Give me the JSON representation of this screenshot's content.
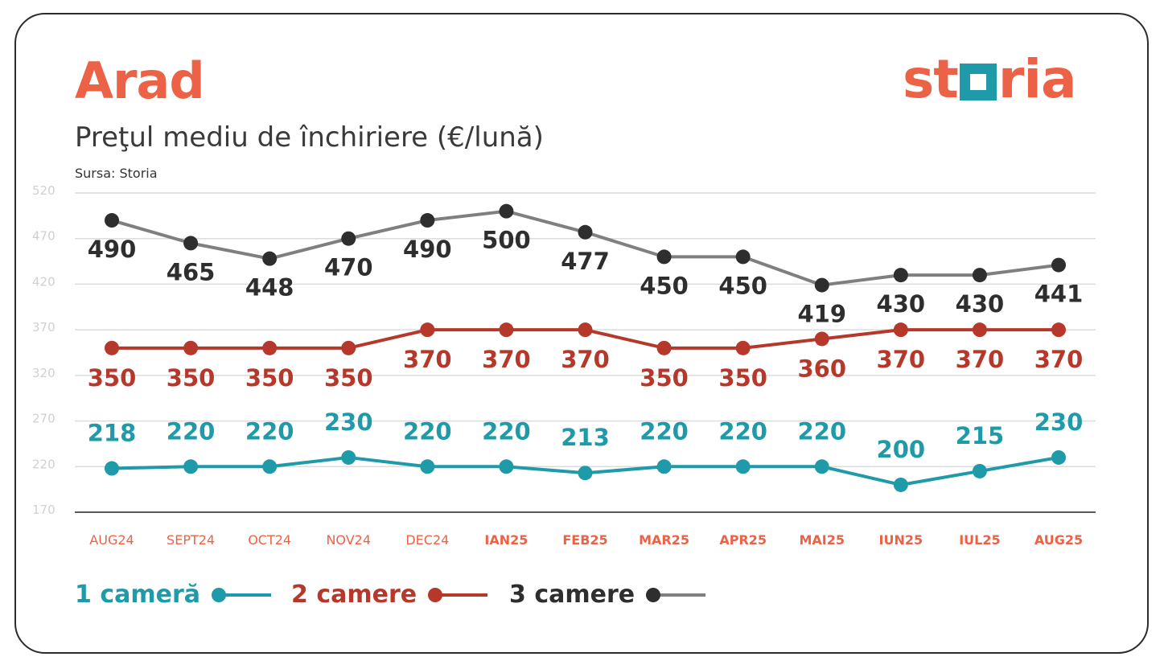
{
  "header": {
    "city": "Arad",
    "subtitle": "Preţul mediu de închiriere (€/lună)",
    "source": "Sursa: Storia",
    "logo_left": "st",
    "logo_right": "ria"
  },
  "colors": {
    "accent": "#ec6247",
    "one_room": "#1e9aa8",
    "two_rooms": "#b5382b",
    "three_rooms_line": "#7f7f7f",
    "three_rooms_dot": "#2e2e2e",
    "grid": "#dcdcdc",
    "tick": "#d0d0d0"
  },
  "legend": {
    "one_room": "1 cameră",
    "two_rooms": "2 camere",
    "three_rooms": "3 camere"
  },
  "chart_data": {
    "type": "line",
    "title": "Preţul mediu de închiriere (€/lună)",
    "xlabel": "",
    "ylabel": "",
    "categories": [
      "AUG24",
      "SEPT24",
      "OCT24",
      "NOV24",
      "DEC24",
      "IAN25",
      "FEB25",
      "MAR25",
      "APR25",
      "MAI25",
      "IUN25",
      "IUL25",
      "AUG25"
    ],
    "bold_categories": [
      "IAN25",
      "FEB25",
      "MAR25",
      "APR25",
      "MAI25",
      "IUN25",
      "IUL25",
      "AUG25"
    ],
    "ylim": [
      170,
      520
    ],
    "yticks": [
      520,
      470,
      420,
      370,
      320,
      270,
      220,
      170
    ],
    "grid": true,
    "legend_position": "bottom-left",
    "series": [
      {
        "name": "1 cameră",
        "values": [
          218,
          220,
          220,
          230,
          220,
          220,
          213,
          220,
          220,
          220,
          200,
          215,
          230
        ]
      },
      {
        "name": "2 camere",
        "values": [
          350,
          350,
          350,
          350,
          370,
          370,
          370,
          350,
          350,
          360,
          370,
          370,
          370
        ]
      },
      {
        "name": "3 camere",
        "values": [
          490,
          465,
          448,
          470,
          490,
          500,
          477,
          450,
          450,
          419,
          430,
          430,
          441
        ]
      }
    ]
  }
}
